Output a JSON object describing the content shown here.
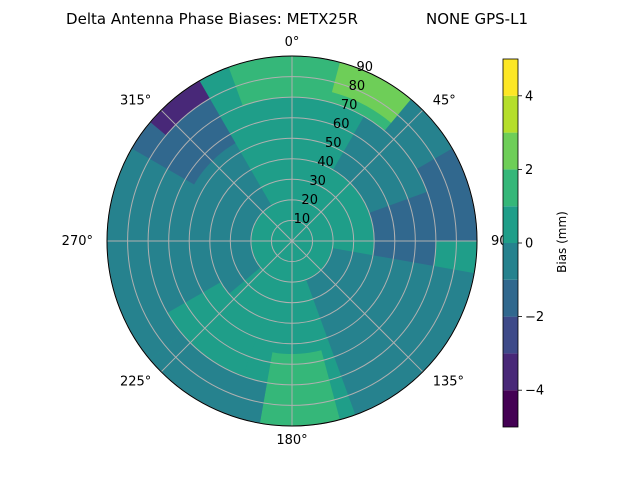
{
  "chart_data": {
    "type": "polar-contour",
    "title": "Delta Antenna Phase Biases: METX25R",
    "title_right": "NONE GPS-L1",
    "angular_axis": {
      "zero_location": "top",
      "direction": "clockwise",
      "tick_labels": [
        "0°",
        "45°",
        "90°",
        "135°",
        "180°",
        "225°",
        "270°",
        "315°"
      ],
      "tick_degrees": [
        0,
        45,
        90,
        135,
        180,
        225,
        270,
        315
      ]
    },
    "radial_axis": {
      "tick_labels": [
        "10",
        "20",
        "30",
        "40",
        "50",
        "60",
        "70",
        "80",
        "90"
      ],
      "ticks": [
        10,
        20,
        30,
        40,
        50,
        60,
        70,
        80,
        90
      ],
      "range": [
        0,
        90
      ]
    },
    "colorbar": {
      "label": "Bias (mm)",
      "range": [
        -5,
        5
      ],
      "tick_labels": [
        "−4",
        "−2",
        "0",
        "2",
        "4"
      ],
      "ticks": [
        -4,
        -2,
        0,
        2,
        4
      ],
      "levels": [
        {
          "from": -5,
          "to": -4,
          "color": "#440154"
        },
        {
          "from": -4,
          "to": -3,
          "color": "#482878"
        },
        {
          "from": -3,
          "to": -2,
          "color": "#3e4a89"
        },
        {
          "from": -2,
          "to": -1,
          "color": "#31688e"
        },
        {
          "from": -1,
          "to": 0,
          "color": "#26828e"
        },
        {
          "from": 0,
          "to": 1,
          "color": "#1f9e89"
        },
        {
          "from": 1,
          "to": 2,
          "color": "#35b779"
        },
        {
          "from": 2,
          "to": 3,
          "color": "#6ece58"
        },
        {
          "from": 3,
          "to": 4,
          "color": "#b5de2b"
        },
        {
          "from": 4,
          "to": 5,
          "color": "#fde725"
        }
      ]
    },
    "regions": [
      {
        "level": 0.5,
        "theta": [
          330,
          30
        ],
        "r": [
          0,
          90
        ]
      },
      {
        "level": -0.5,
        "theta": [
          30,
          80
        ],
        "r": [
          40,
          90
        ]
      },
      {
        "level": 1.5,
        "theta": [
          340,
          40
        ],
        "r": [
          70,
          90
        ]
      },
      {
        "level": 2.5,
        "theta": [
          15,
          40
        ],
        "r": [
          75,
          90
        ]
      },
      {
        "level": -1.5,
        "theta": [
          70,
          110
        ],
        "r": [
          40,
          70
        ]
      },
      {
        "level": -1.5,
        "theta": [
          60,
          90
        ],
        "r": [
          70,
          90
        ]
      },
      {
        "level": 1.5,
        "theta": [
          165,
          190
        ],
        "r": [
          55,
          90
        ]
      },
      {
        "level": -0.5,
        "theta": [
          190,
          230
        ],
        "r": [
          70,
          90
        ]
      },
      {
        "level": -0.5,
        "theta": [
          230,
          330
        ],
        "r": [
          20,
          90
        ]
      },
      {
        "level": -1.5,
        "theta": [
          300,
          330
        ],
        "r": [
          55,
          90
        ]
      },
      {
        "level": -3.5,
        "theta": [
          310,
          330
        ],
        "r": [
          80,
          90
        ]
      },
      {
        "level": -0.5,
        "theta": [
          100,
          160
        ],
        "r": [
          20,
          90
        ]
      },
      {
        "level": 0.5,
        "theta": [
          200,
          240
        ],
        "r": [
          40,
          70
        ]
      }
    ]
  }
}
